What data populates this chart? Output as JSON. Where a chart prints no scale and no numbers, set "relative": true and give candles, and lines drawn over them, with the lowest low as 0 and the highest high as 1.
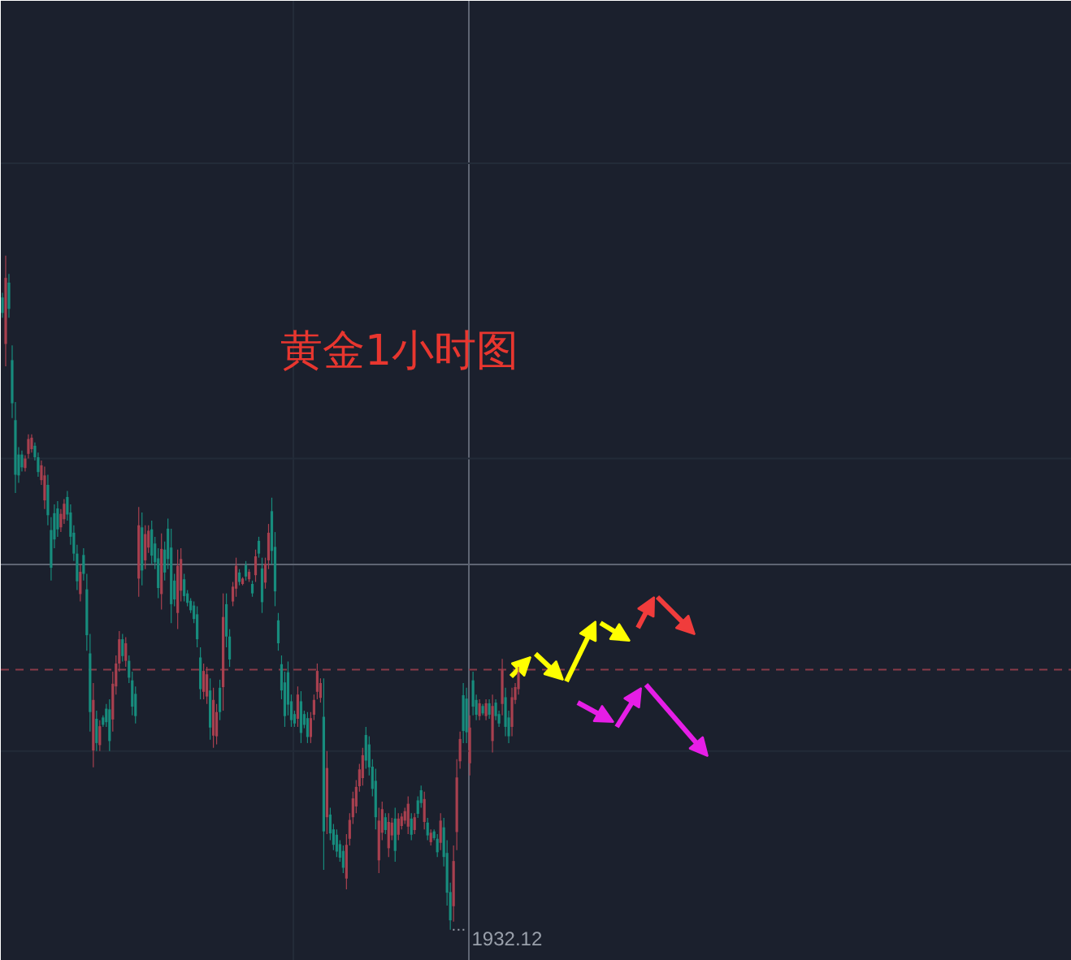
{
  "chart_data": {
    "type": "candlestick",
    "title": "黄金1小时图",
    "relative": true,
    "categories": [
      null,
      null,
      null,
      null,
      null,
      null,
      null,
      null,
      null,
      null,
      null,
      null,
      null,
      null,
      null,
      null,
      null,
      null,
      null,
      null,
      null,
      null,
      null,
      null,
      null,
      null,
      null,
      null,
      null,
      null,
      null,
      null,
      null,
      null,
      null,
      null,
      null,
      null,
      null,
      null,
      null,
      null,
      null,
      null,
      null,
      null,
      null,
      null,
      null,
      null,
      null,
      null,
      null,
      null,
      null,
      null,
      null,
      null,
      null,
      null,
      null,
      null,
      null,
      null,
      null,
      null,
      null,
      null,
      null,
      null,
      null,
      null,
      null,
      null,
      null,
      null,
      null,
      null,
      null,
      null,
      null,
      null,
      null,
      null,
      null,
      null,
      null,
      null,
      null,
      null,
      null,
      null,
      null,
      null,
      null,
      null,
      null,
      null,
      null,
      null,
      null,
      null,
      null,
      null,
      null,
      null,
      null,
      null,
      null,
      null,
      null,
      null,
      null,
      null,
      null,
      null,
      null,
      null,
      null,
      null,
      null,
      null,
      null,
      null,
      null,
      null,
      null,
      null,
      null,
      null,
      null,
      null,
      null,
      null,
      null,
      null,
      null,
      null,
      null,
      null,
      null,
      null,
      null,
      null,
      null,
      null,
      null,
      null,
      null,
      null,
      null,
      null,
      null,
      null,
      null,
      null,
      null,
      null,
      null,
      null,
      null,
      null,
      null,
      null,
      null,
      null,
      null,
      null,
      null,
      null,
      null,
      null,
      null,
      null,
      null,
      null,
      null,
      null,
      null,
      null,
      null,
      null,
      null,
      null,
      null,
      null,
      null,
      null,
      null,
      null,
      null,
      null,
      null,
      null,
      null,
      null,
      null,
      null,
      null,
      null,
      null,
      null,
      null,
      null,
      null,
      null,
      null,
      null,
      null,
      null,
      null,
      null,
      null,
      null,
      null,
      null,
      null,
      null,
      null,
      null,
      null,
      null,
      null,
      null,
      null,
      null,
      null,
      null,
      null,
      null,
      null,
      null,
      null,
      null,
      null,
      null,
      null,
      null,
      null,
      null,
      null,
      null,
      null,
      null,
      null,
      null,
      null,
      null,
      null,
      null,
      null,
      null,
      null,
      null,
      null,
      null,
      null,
      null,
      null,
      null,
      null,
      null,
      null,
      null,
      null,
      null,
      null,
      null,
      null,
      null,
      null,
      null,
      null,
      null,
      null,
      null,
      null,
      null,
      null,
      null,
      null,
      null,
      null,
      null,
      null,
      null,
      null,
      null,
      null,
      null,
      null,
      null,
      null,
      null,
      null,
      null,
      null,
      null,
      null,
      null,
      null,
      null,
      null,
      null,
      null,
      null,
      null,
      null,
      null,
      null,
      null,
      null,
      null,
      null,
      null,
      null,
      null,
      null,
      null,
      null,
      null,
      null,
      null,
      null,
      null,
      null,
      null,
      null,
      null,
      null
    ],
    "ohlc": [
      [
        0.938,
        0.945,
        0.908,
        0.915
      ],
      [
        0.869,
        1.0,
        0.836,
        0.967
      ],
      [
        0.96,
        0.973,
        0.908,
        0.921
      ],
      [
        0.845,
        0.867,
        0.759,
        0.781
      ],
      [
        0.756,
        0.783,
        0.648,
        0.675
      ],
      [
        0.705,
        0.716,
        0.663,
        0.674
      ],
      [
        0.705,
        0.711,
        0.68,
        0.686
      ],
      [
        0.685,
        0.704,
        0.68,
        0.699
      ],
      [
        0.706,
        0.735,
        0.699,
        0.728
      ],
      [
        0.713,
        0.735,
        0.708,
        0.73
      ],
      [
        0.718,
        0.723,
        0.696,
        0.701
      ],
      [
        0.701,
        0.708,
        0.672,
        0.679
      ],
      [
        0.667,
        0.696,
        0.66,
        0.689
      ],
      [
        0.637,
        0.687,
        0.624,
        0.674
      ],
      [
        0.66,
        0.675,
        0.6,
        0.615
      ],
      [
        0.593,
        0.612,
        0.518,
        0.537
      ],
      [
        0.618,
        0.631,
        0.566,
        0.579
      ],
      [
        0.625,
        0.636,
        0.583,
        0.594
      ],
      [
        0.597,
        0.624,
        0.59,
        0.617
      ],
      [
        0.609,
        0.639,
        0.602,
        0.632
      ],
      [
        0.642,
        0.651,
        0.607,
        0.616
      ],
      [
        0.619,
        0.631,
        0.571,
        0.583
      ],
      [
        0.589,
        0.6,
        0.547,
        0.558
      ],
      [
        0.558,
        0.571,
        0.504,
        0.517
      ],
      [
        0.498,
        0.542,
        0.487,
        0.531
      ],
      [
        0.556,
        0.566,
        0.518,
        0.528
      ],
      [
        0.505,
        0.528,
        0.414,
        0.437
      ],
      [
        0.41,
        0.439,
        0.294,
        0.323
      ],
      [
        0.266,
        0.366,
        0.241,
        0.341
      ],
      [
        0.313,
        0.325,
        0.265,
        0.277
      ],
      [
        0.274,
        0.311,
        0.265,
        0.302
      ],
      [
        0.315,
        0.318,
        0.301,
        0.304
      ],
      [
        0.328,
        0.335,
        0.301,
        0.308
      ],
      [
        0.327,
        0.342,
        0.265,
        0.28
      ],
      [
        0.312,
        0.383,
        0.294,
        0.365
      ],
      [
        0.361,
        0.407,
        0.349,
        0.395
      ],
      [
        0.395,
        0.443,
        0.383,
        0.431
      ],
      [
        0.431,
        0.439,
        0.398,
        0.406
      ],
      [
        0.399,
        0.434,
        0.39,
        0.425
      ],
      [
        0.399,
        0.407,
        0.366,
        0.374
      ],
      [
        0.37,
        0.383,
        0.318,
        0.331
      ],
      [
        0.35,
        0.361,
        0.306,
        0.317
      ],
      [
        0.521,
        0.627,
        0.494,
        0.6
      ],
      [
        0.597,
        0.619,
        0.511,
        0.533
      ],
      [
        0.548,
        0.6,
        0.535,
        0.587
      ],
      [
        0.567,
        0.6,
        0.559,
        0.592
      ],
      [
        0.594,
        0.607,
        0.542,
        0.555
      ],
      [
        0.573,
        0.583,
        0.535,
        0.545
      ],
      [
        0.551,
        0.566,
        0.492,
        0.507
      ],
      [
        0.498,
        0.588,
        0.475,
        0.565
      ],
      [
        0.564,
        0.576,
        0.518,
        0.53
      ],
      [
        0.595,
        0.61,
        0.535,
        0.55
      ],
      [
        0.567,
        0.595,
        0.455,
        0.483
      ],
      [
        0.518,
        0.528,
        0.48,
        0.49
      ],
      [
        0.47,
        0.564,
        0.446,
        0.54
      ],
      [
        0.503,
        0.566,
        0.487,
        0.55
      ],
      [
        0.52,
        0.528,
        0.487,
        0.495
      ],
      [
        0.499,
        0.504,
        0.48,
        0.485
      ],
      [
        0.488,
        0.492,
        0.47,
        0.474
      ],
      [
        0.481,
        0.487,
        0.455,
        0.461
      ],
      [
        0.468,
        0.48,
        0.419,
        0.431
      ],
      [
        0.404,
        0.419,
        0.342,
        0.357
      ],
      [
        0.353,
        0.395,
        0.342,
        0.384
      ],
      [
        0.346,
        0.39,
        0.335,
        0.379
      ],
      [
        0.355,
        0.373,
        0.282,
        0.3
      ],
      [
        0.288,
        0.359,
        0.27,
        0.341
      ],
      [
        0.287,
        0.335,
        0.275,
        0.323
      ],
      [
        0.359,
        0.371,
        0.311,
        0.323
      ],
      [
        0.36,
        0.499,
        0.325,
        0.464
      ],
      [
        0.483,
        0.499,
        0.419,
        0.435
      ],
      [
        0.435,
        0.446,
        0.39,
        0.401
      ],
      [
        0.487,
        0.516,
        0.48,
        0.509
      ],
      [
        0.506,
        0.552,
        0.494,
        0.54
      ],
      [
        0.53,
        0.535,
        0.511,
        0.516
      ],
      [
        0.513,
        0.523,
        0.511,
        0.521
      ],
      [
        0.541,
        0.547,
        0.518,
        0.524
      ],
      [
        0.52,
        0.535,
        0.516,
        0.531
      ],
      [
        0.513,
        0.518,
        0.494,
        0.499
      ],
      [
        0.526,
        0.564,
        0.516,
        0.554
      ],
      [
        0.577,
        0.583,
        0.552,
        0.558
      ],
      [
        0.536,
        0.552,
        0.47,
        0.486
      ],
      [
        0.515,
        0.552,
        0.506,
        0.543
      ],
      [
        0.548,
        0.602,
        0.535,
        0.589
      ],
      [
        0.621,
        0.641,
        0.542,
        0.562
      ],
      [
        0.568,
        0.59,
        0.48,
        0.502
      ],
      [
        0.459,
        0.47,
        0.414,
        0.425
      ],
      [
        0.394,
        0.407,
        0.342,
        0.355
      ],
      [
        0.367,
        0.383,
        0.301,
        0.317
      ],
      [
        0.382,
        0.398,
        0.318,
        0.334
      ],
      [
        0.339,
        0.349,
        0.301,
        0.311
      ],
      [
        0.32,
        0.325,
        0.301,
        0.306
      ],
      [
        0.313,
        0.361,
        0.301,
        0.349
      ],
      [
        0.339,
        0.354,
        0.277,
        0.292
      ],
      [
        0.32,
        0.325,
        0.299,
        0.304
      ],
      [
        0.314,
        0.323,
        0.277,
        0.286
      ],
      [
        0.286,
        0.323,
        0.277,
        0.314
      ],
      [
        0.319,
        0.349,
        0.311,
        0.341
      ],
      [
        0.353,
        0.395,
        0.342,
        0.384
      ],
      [
        0.344,
        0.373,
        0.337,
        0.366
      ],
      [
        0.316,
        0.373,
        0.089,
        0.146
      ],
      [
        0.167,
        0.265,
        0.142,
        0.24
      ],
      [
        0.171,
        0.181,
        0.133,
        0.143
      ],
      [
        0.149,
        0.157,
        0.118,
        0.126
      ],
      [
        0.141,
        0.149,
        0.108,
        0.116
      ],
      [
        0.127,
        0.133,
        0.101,
        0.107
      ],
      [
        0.117,
        0.125,
        0.084,
        0.092
      ],
      [
        0.076,
        0.142,
        0.06,
        0.126
      ],
      [
        0.135,
        0.173,
        0.125,
        0.163
      ],
      [
        0.167,
        0.205,
        0.157,
        0.195
      ],
      [
        0.183,
        0.222,
        0.173,
        0.212
      ],
      [
        0.213,
        0.246,
        0.205,
        0.238
      ],
      [
        0.225,
        0.27,
        0.214,
        0.259
      ],
      [
        0.289,
        0.301,
        0.239,
        0.251
      ],
      [
        0.275,
        0.287,
        0.229,
        0.241
      ],
      [
        0.242,
        0.253,
        0.198,
        0.209
      ],
      [
        0.221,
        0.239,
        0.149,
        0.167
      ],
      [
        0.103,
        0.181,
        0.084,
        0.162
      ],
      [
        0.144,
        0.19,
        0.133,
        0.179
      ],
      [
        0.167,
        0.173,
        0.142,
        0.148
      ],
      [
        0.121,
        0.173,
        0.108,
        0.16
      ],
      [
        0.14,
        0.166,
        0.133,
        0.159
      ],
      [
        0.165,
        0.181,
        0.101,
        0.117
      ],
      [
        0.141,
        0.173,
        0.133,
        0.165
      ],
      [
        0.154,
        0.173,
        0.149,
        0.168
      ],
      [
        0.162,
        0.181,
        0.157,
        0.176
      ],
      [
        0.153,
        0.198,
        0.142,
        0.187
      ],
      [
        0.165,
        0.173,
        0.133,
        0.141
      ],
      [
        0.148,
        0.173,
        0.142,
        0.167
      ],
      [
        0.192,
        0.198,
        0.166,
        0.172
      ],
      [
        0.207,
        0.214,
        0.181,
        0.188
      ],
      [
        0.16,
        0.205,
        0.149,
        0.194
      ],
      [
        0.159,
        0.166,
        0.133,
        0.14
      ],
      [
        0.13,
        0.149,
        0.125,
        0.144
      ],
      [
        0.146,
        0.149,
        0.133,
        0.136
      ],
      [
        0.135,
        0.142,
        0.108,
        0.115
      ],
      [
        0.129,
        0.173,
        0.118,
        0.162
      ],
      [
        0.152,
        0.166,
        0.094,
        0.108
      ],
      [
        0.114,
        0.133,
        0.036,
        0.055
      ],
      [
        0.056,
        0.07,
        0.0,
        0.014
      ],
      [
        0.035,
        0.125,
        0.012,
        0.102
      ],
      [
        0.145,
        0.253,
        0.118,
        0.226
      ],
      [
        0.25,
        0.294,
        0.239,
        0.283
      ],
      [
        0.348,
        0.366,
        0.277,
        0.295
      ],
      [
        0.343,
        0.359,
        0.277,
        0.293
      ],
      [
        0.247,
        0.318,
        0.229,
        0.3
      ],
      [
        0.37,
        0.383,
        0.318,
        0.331
      ],
      [
        0.341,
        0.349,
        0.311,
        0.319
      ],
      [
        0.317,
        0.342,
        0.311,
        0.336
      ],
      [
        0.332,
        0.335,
        0.318,
        0.321
      ],
      [
        0.317,
        0.342,
        0.311,
        0.336
      ],
      [
        0.336,
        0.342,
        0.313,
        0.319
      ],
      [
        0.28,
        0.349,
        0.263,
        0.332
      ],
      [
        0.337,
        0.342,
        0.311,
        0.317
      ],
      [
        0.32,
        0.325,
        0.301,
        0.306
      ],
      [
        0.335,
        0.402,
        0.318,
        0.385
      ],
      [
        0.345,
        0.359,
        0.287,
        0.301
      ],
      [
        0.315,
        0.325,
        0.277,
        0.287
      ],
      [
        0.301,
        0.359,
        0.287,
        0.345
      ],
      [
        0.341,
        0.366,
        0.335,
        0.36
      ],
      [
        0.357,
        0.39,
        0.349,
        0.382
      ],
      null,
      null,
      null,
      null,
      null,
      null,
      null,
      null,
      null,
      null,
      null,
      null,
      null,
      null,
      null,
      null,
      null,
      null,
      null,
      null,
      null,
      null,
      null,
      null,
      null,
      null,
      null,
      null,
      null,
      null,
      null,
      null,
      null,
      null,
      null,
      null,
      null,
      null,
      null,
      null,
      null,
      null,
      null,
      null,
      null,
      null,
      null,
      null,
      null,
      null,
      null,
      null,
      null,
      null,
      null,
      null,
      null,
      null,
      null,
      null,
      null,
      null,
      null,
      null,
      null,
      null,
      null,
      null,
      null,
      null,
      null,
      null,
      null,
      null,
      null,
      null,
      null,
      null,
      null,
      null,
      null,
      null,
      null,
      null,
      null,
      null,
      null,
      null,
      null,
      null,
      null,
      null,
      null,
      null,
      null,
      null,
      null,
      null,
      null,
      null,
      null,
      null,
      null,
      null,
      null,
      null,
      null,
      null,
      null,
      null,
      null,
      null,
      null,
      null,
      null,
      null,
      null,
      null,
      null,
      null,
      null,
      null,
      null,
      null,
      null,
      null,
      null,
      null,
      null,
      null,
      null,
      null,
      null,
      null,
      null,
      null,
      null,
      null,
      null,
      null,
      null,
      null,
      null,
      null,
      null,
      null,
      null,
      null,
      null,
      null,
      null,
      null,
      null,
      null,
      null,
      null,
      null,
      null,
      null,
      null,
      null,
      null,
      null,
      null,
      null,
      null,
      null,
      null,
      null,
      null
    ],
    "colors": [
      "#178c7d",
      "#a8404f",
      "#178c7d",
      "#178c7d",
      "#178c7d",
      "#178c7d",
      "#178c7d",
      "#a8404f",
      "#a8404f",
      "#a8404f",
      "#178c7d",
      "#178c7d",
      "#a8404f",
      "#a8404f",
      "#178c7d",
      "#178c7d",
      "#178c7d",
      "#178c7d",
      "#a8404f",
      "#a8404f",
      "#178c7d",
      "#178c7d",
      "#178c7d",
      "#178c7d",
      "#a8404f",
      "#178c7d",
      "#178c7d",
      "#178c7d",
      "#a8404f",
      "#178c7d",
      "#a8404f",
      "#178c7d",
      "#178c7d",
      "#178c7d",
      "#a8404f",
      "#a8404f",
      "#a8404f",
      "#178c7d",
      "#a8404f",
      "#178c7d",
      "#178c7d",
      "#178c7d",
      "#a8404f",
      "#178c7d",
      "#a8404f",
      "#a8404f",
      "#178c7d",
      "#178c7d",
      "#178c7d",
      "#a8404f",
      "#178c7d",
      "#178c7d",
      "#178c7d",
      "#178c7d",
      "#a8404f",
      "#a8404f",
      "#178c7d",
      "#178c7d",
      "#178c7d",
      "#178c7d",
      "#178c7d",
      "#178c7d",
      "#a8404f",
      "#a8404f",
      "#178c7d",
      "#a8404f",
      "#a8404f",
      "#178c7d",
      "#a8404f",
      "#178c7d",
      "#178c7d",
      "#a8404f",
      "#a8404f",
      "#178c7d",
      "#a8404f",
      "#178c7d",
      "#a8404f",
      "#178c7d",
      "#a8404f",
      "#178c7d",
      "#178c7d",
      "#a8404f",
      "#a8404f",
      "#178c7d",
      "#178c7d",
      "#178c7d",
      "#178c7d",
      "#178c7d",
      "#178c7d",
      "#178c7d",
      "#178c7d",
      "#a8404f",
      "#178c7d",
      "#178c7d",
      "#178c7d",
      "#a8404f",
      "#a8404f",
      "#a8404f",
      "#a8404f",
      "#178c7d",
      "#a8404f",
      "#178c7d",
      "#178c7d",
      "#178c7d",
      "#178c7d",
      "#178c7d",
      "#a8404f",
      "#a8404f",
      "#a8404f",
      "#a8404f",
      "#a8404f",
      "#a8404f",
      "#178c7d",
      "#178c7d",
      "#178c7d",
      "#178c7d",
      "#a8404f",
      "#a8404f",
      "#178c7d",
      "#a8404f",
      "#a8404f",
      "#178c7d",
      "#a8404f",
      "#a8404f",
      "#a8404f",
      "#a8404f",
      "#178c7d",
      "#a8404f",
      "#178c7d",
      "#178c7d",
      "#a8404f",
      "#178c7d",
      "#a8404f",
      "#178c7d",
      "#178c7d",
      "#a8404f",
      "#178c7d",
      "#178c7d",
      "#178c7d",
      "#a8404f",
      "#a8404f",
      "#a8404f",
      "#178c7d",
      "#178c7d",
      "#a8404f",
      "#178c7d",
      "#178c7d",
      "#a8404f",
      "#178c7d",
      "#a8404f",
      "#178c7d",
      "#a8404f",
      "#178c7d",
      "#178c7d",
      "#a8404f",
      "#178c7d",
      "#178c7d",
      "#a8404f",
      "#a8404f",
      "#a8404f",
      null,
      null,
      null,
      null,
      null,
      null,
      null,
      null,
      null,
      null,
      null,
      null,
      null,
      null,
      null,
      null,
      null,
      null,
      null,
      null,
      null,
      null,
      null,
      null,
      null,
      null,
      null,
      null,
      null,
      null,
      null,
      null,
      null,
      null,
      null,
      null,
      null,
      null,
      null,
      null,
      null,
      null,
      null,
      null,
      null,
      null,
      null,
      null,
      null,
      null,
      null,
      null,
      null,
      null,
      null,
      null,
      null,
      null,
      null,
      null,
      null,
      null,
      null,
      null,
      null,
      null,
      null,
      null,
      null,
      null,
      null,
      null,
      null,
      null,
      null,
      null,
      null,
      null,
      null,
      null,
      null,
      null,
      null,
      null,
      null,
      null,
      null,
      null,
      null,
      null,
      null,
      null,
      null,
      null,
      null,
      null,
      null,
      null,
      null,
      null,
      null,
      null,
      null,
      null,
      null,
      null,
      null,
      null,
      null,
      null,
      null,
      null,
      null,
      null,
      null,
      null,
      null,
      null,
      null,
      null,
      null,
      null,
      null,
      null,
      null,
      null,
      null,
      null,
      null,
      null,
      null,
      null,
      null,
      null,
      null,
      null,
      null,
      null,
      null,
      null,
      null,
      null,
      null,
      null,
      null,
      null,
      null,
      null,
      null,
      null,
      null,
      null,
      null,
      null,
      null,
      null,
      null,
      null,
      null,
      null,
      null,
      null,
      null,
      null,
      null,
      null,
      null,
      null,
      null,
      null
    ],
    "ref_lines": [
      {
        "axis": "y",
        "value": 1.137,
        "color": "#232b38"
      },
      {
        "axis": "y",
        "value": 0.699,
        "color": "#232b38"
      },
      {
        "axis": "y",
        "value": 0.265,
        "color": "#232b38"
      },
      {
        "axis": "y",
        "value": 0.542,
        "color": "#5f6573"
      },
      {
        "axis": "y",
        "value": 0.386,
        "color": "#8a3a48",
        "line_style": "dashed"
      }
    ],
    "annotations": [
      "1932.12"
    ]
  }
}
